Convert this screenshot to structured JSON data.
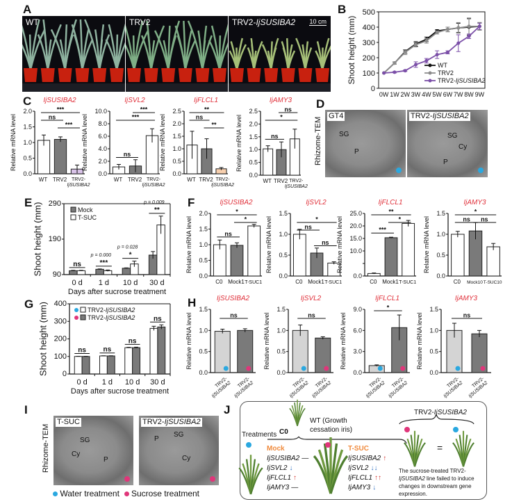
{
  "panel_labels": [
    "A",
    "B",
    "C",
    "D",
    "E",
    "F",
    "G",
    "H",
    "I",
    "J"
  ],
  "colors": {
    "gene_title": "#e0303a",
    "water": "#2aa8e0",
    "sucrose": "#e0367a",
    "mock_bar": "#7a7a7a",
    "light_bar": "#d4d4d4",
    "wt": "#111111",
    "trv2": "#8c8c8c",
    "knockdown": "#7b4fa8",
    "orange": "#f08a3c"
  },
  "panel_a": {
    "photos": [
      {
        "prefix": "WT",
        "gene": ""
      },
      {
        "prefix": "TRV2",
        "gene": ""
      },
      {
        "prefix": "TRV2-",
        "gene": "IjSUSIBA2"
      }
    ],
    "scale_bar": "10 cm"
  },
  "panel_d": {
    "side_label": "Rhizome-TEM",
    "images": [
      {
        "prefix": "GT4",
        "gene": "",
        "labels": [
          "SG",
          "P"
        ],
        "marker": "water"
      },
      {
        "prefix": "TRV2-",
        "gene": "IjSUSIBA2",
        "labels": [
          "SG",
          "Cy",
          "P"
        ],
        "marker": "water"
      }
    ]
  },
  "panel_i": {
    "side_label": "Rhizome-TEM",
    "images": [
      {
        "prefix": "T-SUC",
        "gene": "",
        "labels": [
          "SG",
          "Cy",
          "P"
        ],
        "marker": "sucrose"
      },
      {
        "prefix": "TRV2-",
        "gene": "IjSUSIBA2",
        "labels": [
          "P",
          "SG",
          "Cy"
        ],
        "marker": "sucrose"
      }
    ],
    "legend": [
      "Water treatment",
      "Sucrose treatment"
    ]
  },
  "panel_j": {
    "c0": "C0",
    "wt_label_1": "WT (Growth",
    "wt_label_2": "cessation iris)",
    "treatments": "Treatments",
    "mock_title": "Mock",
    "mock_genes": [
      {
        "gene": "IjSUSIBA2",
        "change": "—"
      },
      {
        "gene": "IjSVL2",
        "change": "↓"
      },
      {
        "gene": "IjFLCL1",
        "change": "↑"
      },
      {
        "gene": "IjAMY3",
        "change": "—"
      }
    ],
    "tsuc_title": "T-SUC",
    "tsuc_genes": [
      {
        "gene": "IjSUSIBA2",
        "change": "↑"
      },
      {
        "gene": "IjSVL2",
        "change": "↓↓"
      },
      {
        "gene": "IjFLCL1",
        "change": "↑↑"
      },
      {
        "gene": "IjAMY3",
        "change": "↓"
      }
    ],
    "right_title_prefix": "TRV2-",
    "right_title_gene": "IjSUSIBA2",
    "equals": "=",
    "note_1": "The sucrose-treated TRV2-",
    "note_2_gene": "IjSUSIBA2",
    "note_2": " line failed to induce",
    "note_3": "changes in downstream gene",
    "note_4": "expression."
  },
  "chart_data": [
    {
      "id": "B",
      "type": "line",
      "ylabel": "Shoot height (mm)",
      "ylim": [
        0,
        500
      ],
      "yticks": [
        0,
        100,
        200,
        300,
        400,
        500
      ],
      "categories": [
        "0W",
        "1W",
        "2W",
        "3W",
        "4W",
        "5W",
        "6W",
        "7W",
        "8W",
        "9W"
      ],
      "legend_placement": "bottom-right",
      "series": [
        {
          "name": "WT",
          "color": "#111111",
          "values": [
            100,
            165,
            240,
            290,
            320,
            375,
            385,
            395,
            400,
            405
          ],
          "errors": [
            0,
            8,
            12,
            15,
            15,
            8,
            15,
            30,
            55,
            25
          ]
        },
        {
          "name": "TRV2",
          "color": "#8c8c8c",
          "values": [
            100,
            165,
            235,
            285,
            310,
            365,
            385,
            395,
            405,
            405
          ],
          "errors": [
            0,
            8,
            15,
            15,
            15,
            10,
            15,
            35,
            55,
            25
          ]
        },
        {
          "name": "TRV2-IjSUSIBA2",
          "color": "#7b4fa8",
          "values": [
            100,
            105,
            115,
            155,
            180,
            220,
            235,
            295,
            340,
            405
          ],
          "errors": [
            0,
            4,
            5,
            18,
            15,
            25,
            10,
            55,
            15,
            20
          ]
        }
      ]
    },
    {
      "id": "C1",
      "type": "bar",
      "title": "IjSUSIBA2",
      "ylabel": "Relative mRNA level",
      "ylim": [
        0,
        2
      ],
      "yticks": [
        "0.0",
        "0.5",
        "1.0",
        "1.5",
        "2.0"
      ],
      "categories": [
        "WT",
        "TRV2",
        "TRV2-IjSUSIBA2"
      ],
      "values": [
        1.07,
        1.1,
        0.15
      ],
      "errors": [
        0.17,
        0.08,
        0.13
      ],
      "bar_colors": [
        "#ffffff",
        "#7a7a7a",
        "#d9c3e8"
      ],
      "significance": [
        {
          "a": 0,
          "b": 1,
          "label": "ns",
          "level": 1
        },
        {
          "a": 1,
          "b": 2,
          "label": "***",
          "level": 0
        },
        {
          "a": 0,
          "b": 2,
          "label": "***",
          "level": 2
        }
      ]
    },
    {
      "id": "C2",
      "type": "bar",
      "title": "IjSVL2",
      "ylabel": "Relative mRNA level",
      "ylim": [
        0,
        10
      ],
      "yticks": [
        "0.0",
        "2.0",
        "4.0",
        "6.0",
        "8.0",
        "10.0"
      ],
      "categories": [
        "WT",
        "TRV2",
        "TRV2-IjSUSIBA2"
      ],
      "values": [
        1.1,
        1.25,
        6.1
      ],
      "errors": [
        0.4,
        1.0,
        1.1
      ],
      "bar_colors": [
        "#ffffff",
        "#7a7a7a",
        "#ffffff"
      ],
      "significance": [
        {
          "a": 0,
          "b": 1,
          "label": "ns",
          "level": -3
        },
        {
          "a": 1,
          "b": 2,
          "label": "***",
          "level": 2
        },
        {
          "a": 0,
          "b": 2,
          "label": "***",
          "level": 1
        }
      ]
    },
    {
      "id": "C3",
      "type": "bar",
      "title": "IjFLCL1",
      "ylabel": "Relative mRNA level",
      "ylim": [
        0,
        2.5
      ],
      "yticks": [
        "0.0",
        "0.5",
        "1.0",
        "1.5",
        "2.0",
        "2.5"
      ],
      "categories": [
        "WT",
        "TRV2",
        "TRV2-IjSUSIBA2"
      ],
      "values": [
        1.15,
        1.0,
        0.2
      ],
      "errors": [
        0.55,
        0.4,
        0.05
      ],
      "bar_colors": [
        "#ffffff",
        "#7a7a7a",
        "#f7cfae"
      ],
      "significance": [
        {
          "a": 0,
          "b": 1,
          "label": "ns",
          "level": 1
        },
        {
          "a": 1,
          "b": 2,
          "label": "**",
          "level": 0
        },
        {
          "a": 0,
          "b": 2,
          "label": "**",
          "level": 2
        }
      ]
    },
    {
      "id": "C4",
      "type": "bar",
      "title": "IjAMY3",
      "ylabel": "Relative mRNA level",
      "ylim": [
        0,
        2.5
      ],
      "yticks": [
        "0.0",
        "0.5",
        "1.0",
        "1.5",
        "2.0",
        "2.5"
      ],
      "categories": [
        "WT",
        "TRV2",
        "TRV2-IjSUSIBA2"
      ],
      "values": [
        1.03,
        1.0,
        1.42
      ],
      "errors": [
        0.12,
        0.3,
        0.38
      ],
      "bar_colors": [
        "#ffffff",
        "#7a7a7a",
        "#ffffff"
      ],
      "significance": [
        {
          "a": 0,
          "b": 1,
          "label": "ns",
          "level": -2
        },
        {
          "a": 1,
          "b": 2,
          "label": "ns",
          "level": 2
        },
        {
          "a": 0,
          "b": 2,
          "label": "*",
          "level": 1
        }
      ]
    },
    {
      "id": "E",
      "type": "grouped-bar",
      "ylabel": "Shoot height (mm)",
      "xlabel": "Days after sucrose treatment",
      "ylim": [
        90,
        290
      ],
      "yticks": [
        "90",
        "190",
        "290"
      ],
      "categories": [
        "0 d",
        "1 d",
        "10 d",
        "30 d"
      ],
      "legend_placement": "top-left",
      "series": [
        {
          "name": "Mock",
          "color": "#7a7a7a",
          "values": [
            101,
            105,
            108,
            145
          ],
          "errors": [
            1,
            1,
            1,
            10
          ]
        },
        {
          "name": "T-SUC",
          "color": "#ffffff",
          "values": [
            101,
            101,
            120,
            230
          ],
          "errors": [
            1,
            2,
            8,
            25
          ]
        }
      ],
      "significance": [
        "ns",
        "***",
        "*",
        "**"
      ],
      "p_values": [
        "",
        "p = 0.000",
        "p = 0.028",
        "p = 0.009"
      ]
    },
    {
      "id": "F1",
      "type": "bar",
      "title": "IjSUSIBA2",
      "ylabel": "Relative mRNA level",
      "ylim": [
        0,
        2
      ],
      "yticks": [
        "0.0",
        "0.5",
        "1.0",
        "1.5",
        "2.0"
      ],
      "categories": [
        "C0",
        "Mock1",
        "T-SUC1"
      ],
      "values": [
        1.0,
        0.98,
        1.6
      ],
      "errors": [
        0.15,
        0.08,
        0.05
      ],
      "bar_colors": [
        "#ffffff",
        "#7a7a7a",
        "#ffffff"
      ],
      "significance": [
        {
          "a": 0,
          "b": 1,
          "label": "ns",
          "level": -3
        },
        {
          "a": 1,
          "b": 2,
          "label": "*",
          "level": 1
        },
        {
          "a": 0,
          "b": 2,
          "label": "*",
          "level": 2
        }
      ]
    },
    {
      "id": "F2",
      "type": "bar",
      "title": "IjSVL2",
      "ylabel": "Relative mRNA level",
      "ylim": [
        0,
        1.5
      ],
      "yticks": [
        "0.0",
        "0.5",
        "1.0",
        "1.5"
      ],
      "categories": [
        "C0",
        "Mock1",
        "T-SUC1"
      ],
      "values": [
        1.0,
        0.55,
        0.31
      ],
      "errors": [
        0.12,
        0.12,
        0.03
      ],
      "bar_colors": [
        "#ffffff",
        "#7a7a7a",
        "#ffffff"
      ],
      "significance": [
        {
          "a": 0,
          "b": 1,
          "label": "ns",
          "level": 0
        },
        {
          "a": 1,
          "b": 2,
          "label": "ns",
          "level": -2
        },
        {
          "a": 0,
          "b": 2,
          "label": "*",
          "level": 1
        }
      ]
    },
    {
      "id": "F3",
      "type": "bar",
      "title": "IjFLCL1",
      "ylabel": "Relative mRNA level",
      "ylim": [
        0,
        25
      ],
      "yticks": [
        "0.0",
        "",
        "10.0",
        "15.0",
        "20.0",
        "25.0"
      ],
      "axis_break": true,
      "categories": [
        "C0",
        "Mock1",
        "T-SUC1"
      ],
      "values": [
        1.0,
        15.3,
        21
      ],
      "errors": [
        0.2,
        0.2,
        1.2
      ],
      "bar_colors": [
        "#ffffff",
        "#7a7a7a",
        "#ffffff"
      ],
      "significance": [
        {
          "a": 0,
          "b": 1,
          "label": "***",
          "level": -3
        },
        {
          "a": 1,
          "b": 2,
          "label": "*",
          "level": 1
        },
        {
          "a": 0,
          "b": 2,
          "label": "**",
          "level": 2
        }
      ]
    },
    {
      "id": "F4",
      "type": "bar",
      "title": "IjAMY3",
      "ylabel": "Relative mRNA level",
      "ylim": [
        0,
        1.5
      ],
      "yticks": [
        "0.0",
        "0.5",
        "1.0",
        "1.5"
      ],
      "categories": [
        "C0",
        "Mock10",
        "T-SUC10"
      ],
      "values": [
        1.0,
        1.08,
        0.7
      ],
      "errors": [
        0.07,
        0.2,
        0.08
      ],
      "bar_colors": [
        "#ffffff",
        "#7a7a7a",
        "#ffffff"
      ],
      "significance": [
        {
          "a": 0,
          "b": 1,
          "label": "ns",
          "level": 1
        },
        {
          "a": 1,
          "b": 2,
          "label": "ns",
          "level": 1
        },
        {
          "a": 0,
          "b": 2,
          "label": "*",
          "level": 2
        }
      ]
    },
    {
      "id": "G",
      "type": "grouped-bar",
      "ylabel": "Shoot height (mm)",
      "xlabel": "Days after sucrose treatment",
      "ylim": [
        0,
        400
      ],
      "yticks": [
        "0",
        "100",
        "200",
        "300",
        "400"
      ],
      "categories": [
        "0 d",
        "1 d",
        "10 d",
        "30 d"
      ],
      "legend_placement": "top-left",
      "series": [
        {
          "name": "TRV2-IjSUSIBA2",
          "marker": "water",
          "color": "#ffffff",
          "values": [
            100,
            103,
            150,
            260
          ],
          "errors": [
            1,
            1,
            2,
            12
          ]
        },
        {
          "name": "TRV2-IjSUSIBA2",
          "marker": "sucrose",
          "color": "#7a7a7a",
          "values": [
            100,
            103,
            150,
            268
          ],
          "errors": [
            1,
            1,
            3,
            12
          ]
        }
      ],
      "significance": [
        "ns",
        "ns",
        "ns",
        "ns"
      ],
      "p_values": [
        "",
        "",
        "",
        ""
      ]
    },
    {
      "id": "H1",
      "type": "bar",
      "title": "IjSUSIBA2",
      "ylabel": "Relative mRNA level",
      "ylim": [
        0,
        1.5
      ],
      "yticks": [
        "0.0",
        "0.5",
        "1.0",
        "1.5"
      ],
      "categories": [
        "TRV2-IjSUSIBA2",
        "TRV2-IjSUSIBA2"
      ],
      "markers": [
        "water",
        "sucrose"
      ],
      "values": [
        0.98,
        1.0
      ],
      "errors": [
        0.05,
        0.04
      ],
      "bar_colors": [
        "#d4d4d4",
        "#7a7a7a"
      ],
      "significance": [
        {
          "a": 0,
          "b": 1,
          "label": "ns",
          "level": 1
        }
      ]
    },
    {
      "id": "H2",
      "type": "bar",
      "title": "IjSVL2",
      "ylabel": "Relative mRNA level",
      "ylim": [
        0,
        1.5
      ],
      "yticks": [
        "0.0",
        "0.5",
        "1.0",
        "1.5"
      ],
      "categories": [
        "TRV2-IjSUSIBA2",
        "TRV2-IjSUSIBA2"
      ],
      "markers": [
        "water",
        "sucrose"
      ],
      "values": [
        1.0,
        0.82
      ],
      "errors": [
        0.13,
        0.03
      ],
      "bar_colors": [
        "#d4d4d4",
        "#7a7a7a"
      ],
      "significance": [
        {
          "a": 0,
          "b": 1,
          "label": "ns",
          "level": 1
        }
      ]
    },
    {
      "id": "H3",
      "type": "bar",
      "title": "IjFLCL1",
      "ylabel": "Relative mRNA level",
      "ylim": [
        0,
        9
      ],
      "yticks": [
        "0.0",
        "3.0",
        "6.0",
        "9.0"
      ],
      "categories": [
        "TRV2-IjSUSIBA2",
        "TRV2-IjSUSIBA2"
      ],
      "markers": [
        "water",
        "sucrose"
      ],
      "values": [
        1.0,
        6.4
      ],
      "errors": [
        0.1,
        1.8
      ],
      "bar_colors": [
        "#d4d4d4",
        "#7a7a7a"
      ],
      "significance": [
        {
          "a": 0,
          "b": 1,
          "label": "*",
          "level": 2
        }
      ]
    },
    {
      "id": "H4",
      "type": "bar",
      "title": "IjAMY3",
      "ylabel": "Relative mRNA level",
      "ylim": [
        0,
        1.5
      ],
      "yticks": [
        "0.0",
        "0.5",
        "1.0",
        "1.5"
      ],
      "categories": [
        "TRV2-IjSUSIBA2",
        "TRV2-IjSUSIBA2"
      ],
      "markers": [
        "water",
        "sucrose"
      ],
      "values": [
        1.0,
        0.92
      ],
      "errors": [
        0.17,
        0.08
      ],
      "bar_colors": [
        "#d4d4d4",
        "#7a7a7a"
      ],
      "significance": [
        {
          "a": 0,
          "b": 1,
          "label": "ns",
          "level": 1
        }
      ]
    }
  ]
}
